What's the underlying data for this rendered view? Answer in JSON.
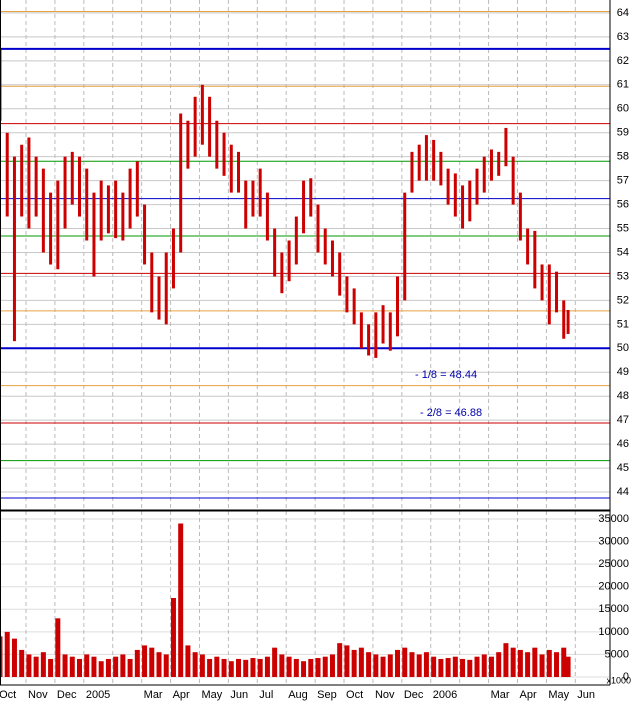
{
  "chart_data": {
    "type": "stock",
    "x": [
      0.1,
      0.35,
      0.6,
      0.85,
      1.1,
      1.35,
      1.6,
      1.85,
      2.1,
      2.35,
      2.6,
      2.85,
      3.1,
      3.35,
      3.6,
      3.85,
      4.1,
      4.35,
      4.6,
      4.85,
      5.1,
      5.35,
      5.6,
      5.85,
      6.1,
      6.35,
      6.6,
      6.85,
      7.1,
      7.35,
      7.6,
      7.85,
      8.1,
      8.35,
      8.6,
      8.85,
      9.1,
      9.35,
      9.6,
      9.85,
      10.1,
      10.35,
      10.6,
      10.85,
      11.1,
      11.35,
      11.6,
      11.85,
      12.1,
      12.35,
      12.6,
      12.85,
      13.1,
      13.35,
      13.6,
      13.85,
      14.1,
      14.35,
      14.6,
      14.85,
      15.1,
      15.35,
      15.6,
      15.85,
      16.1,
      16.35,
      16.6,
      16.85,
      17.1,
      17.35,
      17.6,
      17.85,
      18.1,
      18.35,
      18.6,
      18.85,
      19.1,
      19.35,
      19.6,
      19.75
    ],
    "high": [
      62.5,
      59,
      58,
      58.5,
      58.8,
      58,
      57.5,
      56.5,
      57,
      58,
      58.2,
      58,
      57.5,
      56.5,
      57,
      56.8,
      57,
      56.5,
      57.5,
      57.8,
      56,
      54,
      53,
      54,
      55,
      59.8,
      59.5,
      60.5,
      61,
      60.5,
      59.5,
      59,
      58.5,
      58.2,
      57,
      57,
      57.5,
      56.5,
      55,
      54,
      54.5,
      55.5,
      57,
      57.1,
      56,
      55,
      54.5,
      54,
      53,
      52.5,
      51.5,
      51,
      51.5,
      51.8,
      51.5,
      53,
      56.5,
      58.2,
      58.5,
      58.9,
      58.7,
      58.2,
      57.5,
      57.3,
      56.8,
      57,
      57.5,
      58,
      58.3,
      58.2,
      59.2,
      58,
      56.5,
      55,
      54.9,
      53.5,
      53.5,
      53.2,
      52,
      51.6
    ],
    "low": [
      59.5,
      55.5,
      50.3,
      55.5,
      55,
      55.5,
      54,
      53.5,
      53.3,
      55,
      56,
      55.5,
      54.5,
      53,
      54.5,
      54.8,
      54.6,
      54.5,
      55,
      55.5,
      53.5,
      51.5,
      51.2,
      51,
      52.5,
      54,
      57.5,
      58,
      58.5,
      58,
      57.5,
      57.2,
      56.5,
      56.5,
      55,
      55.5,
      55.5,
      54.5,
      53,
      52.3,
      52.8,
      53.5,
      54.8,
      55.5,
      54,
      53.5,
      53,
      52.2,
      51.5,
      51,
      50,
      49.7,
      49.6,
      50.2,
      49.9,
      50.5,
      52,
      56.5,
      57,
      57,
      57,
      56.8,
      56,
      55.5,
      55,
      55.3,
      56,
      56.5,
      57,
      57.2,
      57.6,
      56,
      54.5,
      53.5,
      52.5,
      52,
      51,
      51.5,
      50.4,
      50.6
    ],
    "volume": [
      9000,
      10000,
      8500,
      6000,
      5000,
      4500,
      5500,
      4000,
      13000,
      5000,
      4500,
      4000,
      5000,
      4500,
      3500,
      4000,
      4500,
      5000,
      4000,
      6000,
      7000,
      6500,
      5500,
      5000,
      17500,
      34000,
      7000,
      5500,
      5000,
      4000,
      4500,
      4000,
      3500,
      4000,
      3800,
      4200,
      4000,
      4500,
      6500,
      5000,
      4500,
      4000,
      3500,
      4000,
      4200,
      4500,
      5000,
      7500,
      7000,
      6000,
      6500,
      5500,
      5000,
      4500,
      5000,
      6000,
      6500,
      5500,
      5000,
      5500,
      4500,
      4000,
      4200,
      4500,
      4000,
      3800,
      4500,
      5000,
      4500,
      5500,
      7500,
      6500,
      6000,
      5500,
      6500,
      5000,
      6000,
      5500,
      6500,
      4500
    ],
    "price_color": "#cc0000",
    "volume_color": "#cc0000",
    "xlim": [
      0.1,
      21.2
    ],
    "xticks": [
      0,
      1,
      2,
      3,
      4,
      5,
      6,
      7,
      8,
      9,
      10,
      11,
      12,
      13,
      14,
      15,
      16,
      17,
      18,
      19,
      20
    ],
    "xtick_labels": [
      "Oct",
      "Nov",
      "Dec",
      "2005",
      null,
      "Mar",
      "Apr",
      "May",
      "Jun",
      "Jul",
      "Aug",
      "Sep",
      "Oct",
      "Nov",
      "Dec",
      "2006",
      null,
      "Mar",
      "Apr",
      "May",
      "Jun"
    ],
    "ylim": [
      43.25,
      64.54
    ],
    "yticks": [
      44,
      45,
      46,
      47,
      48,
      49,
      50,
      51,
      52,
      53,
      54,
      55,
      56,
      57,
      58,
      59,
      60,
      61,
      62,
      63,
      64
    ],
    "levels": [
      {
        "value": 64.06,
        "color": "#e8a040"
      },
      {
        "value": 62.5,
        "color": "#0000cc",
        "bold": true
      },
      {
        "value": 60.94,
        "color": "#e8a040"
      },
      {
        "value": 59.38,
        "color": "#cc0000"
      },
      {
        "value": 57.81,
        "color": "#009900"
      },
      {
        "value": 56.25,
        "color": "#0000cc"
      },
      {
        "value": 54.69,
        "color": "#009900"
      },
      {
        "value": 53.13,
        "color": "#cc0000"
      },
      {
        "value": 51.56,
        "color": "#e8a040"
      },
      {
        "value": 50,
        "color": "#0000cc",
        "bold": true
      },
      {
        "value": 48.44,
        "color": "#e8a040"
      },
      {
        "value": 46.88,
        "color": "#cc0000"
      },
      {
        "value": 45.31,
        "color": "#009900"
      },
      {
        "value": 43.75,
        "color": "#0000cc"
      }
    ],
    "annotations": [
      "- 1/8 = 48.44",
      "- 2/8 = 46.88"
    ],
    "vol_ylim": [
      -1770,
      36550
    ],
    "vol_yticks": [
      0,
      5000,
      10000,
      15000,
      20000,
      25000,
      30000,
      35000
    ],
    "vol_unit": "x1000"
  }
}
